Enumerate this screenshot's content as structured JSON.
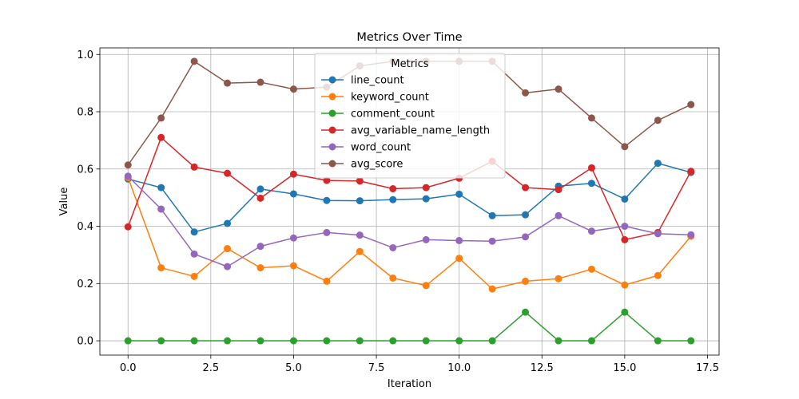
{
  "chart_data": {
    "type": "line",
    "title": "Metrics Over Time",
    "xlabel": "Iteration",
    "ylabel": "Value",
    "xlim": [
      -0.85,
      17.85
    ],
    "ylim": [
      -0.05,
      1.023
    ],
    "xticks": [
      0.0,
      2.5,
      5.0,
      7.5,
      10.0,
      12.5,
      15.0,
      17.5
    ],
    "xtick_labels": [
      "0.0",
      "2.5",
      "5.0",
      "7.5",
      "10.0",
      "12.5",
      "15.0",
      "17.5"
    ],
    "yticks": [
      0.0,
      0.2,
      0.4,
      0.6,
      0.8,
      1.0
    ],
    "ytick_labels": [
      "0.0",
      "0.2",
      "0.4",
      "0.6",
      "0.8",
      "1.0"
    ],
    "grid": true,
    "legend": {
      "title": "Metrics",
      "placement": "upper-center"
    },
    "x": [
      0,
      1,
      2,
      3,
      4,
      5,
      6,
      7,
      8,
      9,
      10,
      11,
      12,
      13,
      14,
      15,
      16,
      17
    ],
    "series": [
      {
        "name": "line_count",
        "color": "#1f77b4",
        "values": [
          0.565,
          0.535,
          0.38,
          0.41,
          0.53,
          0.513,
          0.49,
          0.489,
          0.493,
          0.496,
          0.512,
          0.437,
          0.44,
          0.54,
          0.55,
          0.495,
          0.62,
          0.588
        ]
      },
      {
        "name": "keyword_count",
        "color": "#ff7f0e",
        "values": [
          0.57,
          0.255,
          0.225,
          0.322,
          0.255,
          0.262,
          0.208,
          0.312,
          0.219,
          0.193,
          0.288,
          0.181,
          0.208,
          0.217,
          0.25,
          0.195,
          0.228,
          0.365
        ]
      },
      {
        "name": "comment_count",
        "color": "#2ca02c",
        "values": [
          0.0,
          0.0,
          0.0,
          0.0,
          0.0,
          0.0,
          0.0,
          0.0,
          0.0,
          0.0,
          0.0,
          0.0,
          0.1,
          0.0,
          0.0,
          0.1,
          0.0,
          0.0
        ]
      },
      {
        "name": "avg_variable_name_length",
        "color": "#d62728",
        "values": [
          0.398,
          0.71,
          0.607,
          0.585,
          0.498,
          0.582,
          0.56,
          0.558,
          0.531,
          0.535,
          0.568,
          0.627,
          0.535,
          0.528,
          0.604,
          0.353,
          0.378,
          0.592
        ]
      },
      {
        "name": "word_count",
        "color": "#9467bd",
        "values": [
          0.575,
          0.46,
          0.303,
          0.259,
          0.33,
          0.359,
          0.378,
          0.369,
          0.325,
          0.353,
          0.35,
          0.348,
          0.363,
          0.437,
          0.383,
          0.4,
          0.374,
          0.37
        ]
      },
      {
        "name": "avg_score",
        "color": "#8c564b",
        "values": [
          0.614,
          0.778,
          0.976,
          0.9,
          0.903,
          0.879,
          0.886,
          0.96,
          0.976,
          0.976,
          0.976,
          0.976,
          0.866,
          0.879,
          0.778,
          0.678,
          0.77,
          0.825
        ]
      }
    ]
  }
}
